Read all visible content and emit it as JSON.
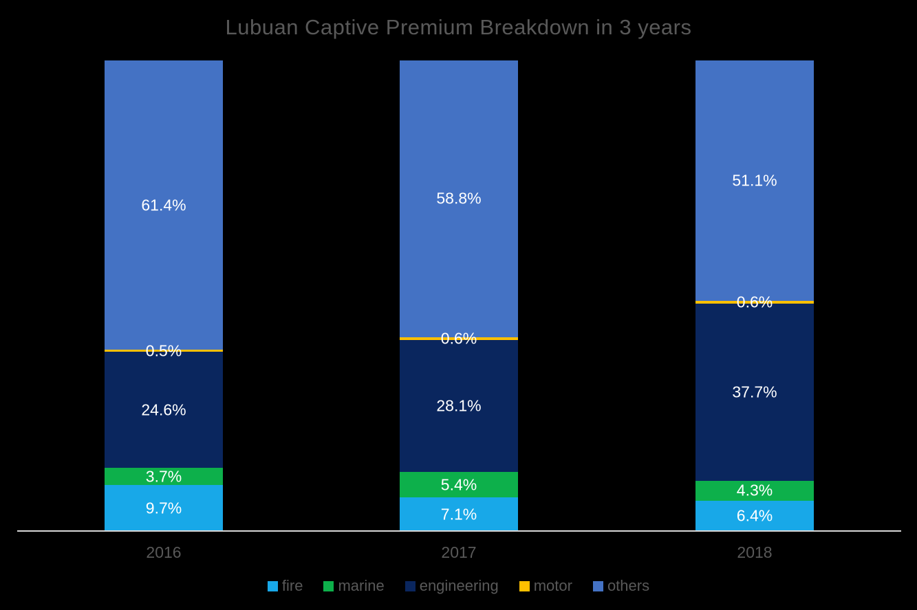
{
  "title": "Lubuan Captive Premium Breakdown in 3 years",
  "text_colors": {
    "title": "#595959",
    "axis_labels": "#595959",
    "legend_labels": "#595959",
    "data_labels": "#FFFFFF"
  },
  "axis_line_color": "#D9D9D9",
  "background_color": "#000000",
  "chart_data": {
    "type": "bar",
    "subtype": "stacked-100-percent-column",
    "title": "Lubuan Captive Premium Breakdown in 3 years",
    "categories": [
      "2016",
      "2017",
      "2018"
    ],
    "series": [
      {
        "name": "fire",
        "color": "#18A8E8",
        "values": [
          9.7,
          7.1,
          6.4
        ]
      },
      {
        "name": "marine",
        "color": "#0DB04B",
        "values": [
          3.7,
          5.4,
          4.3
        ]
      },
      {
        "name": "engineering",
        "color": "#0A265E",
        "values": [
          24.6,
          28.1,
          37.7
        ]
      },
      {
        "name": "motor",
        "color": "#FFC000",
        "values": [
          0.5,
          0.6,
          0.6
        ]
      },
      {
        "name": "others",
        "color": "#4472C4",
        "values": [
          61.4,
          58.8,
          51.1
        ]
      }
    ],
    "data_labels": {
      "2016": [
        "9.7%",
        "3.7%",
        "24.6%",
        "0.5%",
        "61.4%"
      ],
      "2017": [
        "7.1%",
        "5.4%",
        "28.1%",
        "0.6%",
        "58.8%"
      ],
      "2018": [
        "6.4%",
        "4.3%",
        "37.7%",
        "0.6%",
        "51.1%"
      ]
    },
    "xlabel": "",
    "ylabel": "",
    "ylim": [
      0,
      100
    ],
    "grid": false,
    "legend_position": "bottom",
    "legend_items": [
      "fire",
      "marine",
      "engineering",
      "motor",
      "others"
    ]
  }
}
